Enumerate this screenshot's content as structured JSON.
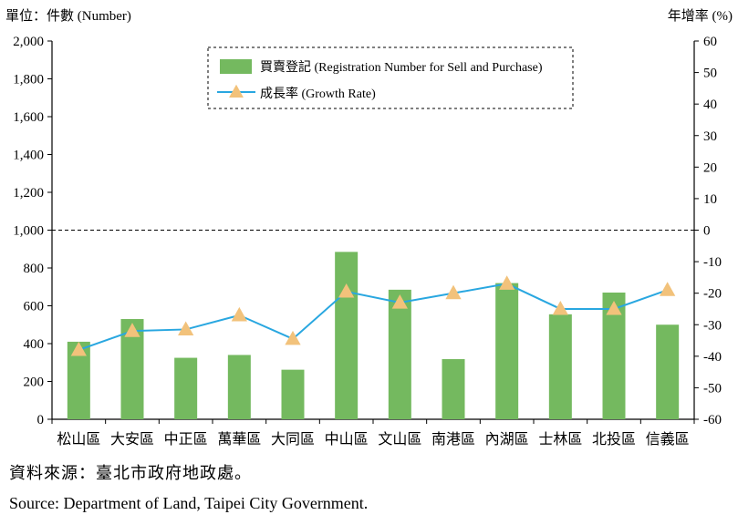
{
  "chart_data": {
    "type": "bar+line",
    "left_axis_unit": "單位：件數 (Number)",
    "right_axis_unit": "年增率 (%)",
    "categories": [
      "松山區",
      "大安區",
      "中正區",
      "萬華區",
      "大同區",
      "中山區",
      "文山區",
      "南港區",
      "內湖區",
      "士林區",
      "北投區",
      "信義區"
    ],
    "series": [
      {
        "name": "買賣登記 (Registration Number for Sell and Purchase)",
        "kind": "bar",
        "axis": "left",
        "color": "#74b95f",
        "values": [
          410,
          530,
          325,
          340,
          262,
          885,
          685,
          318,
          720,
          555,
          670,
          500
        ]
      },
      {
        "name": "成長率 (Growth Rate)",
        "kind": "line",
        "axis": "right",
        "color": "#29a7e0",
        "marker_color": "#f2c27b",
        "values": [
          -38.0,
          -32.0,
          -31.5,
          -27.0,
          -34.5,
          -19.5,
          -23.0,
          -20.0,
          -17.0,
          -25.0,
          -25.0,
          -19.0
        ]
      }
    ],
    "left_ylim": [
      0,
      2000
    ],
    "left_ticks": [
      "0",
      "200",
      "400",
      "600",
      "800",
      "1,000",
      "1,200",
      "1,400",
      "1,600",
      "1,800",
      "2,000"
    ],
    "right_ylim": [
      -60,
      60
    ],
    "right_ticks": [
      "-60",
      "-50",
      "-40",
      "-30",
      "-20",
      "-10",
      "0",
      "10",
      "20",
      "30",
      "40",
      "50",
      "60"
    ],
    "reference_line": {
      "axis": "right",
      "value": 0,
      "style": "dashed"
    },
    "legend_position": "top-center"
  },
  "source": {
    "zh": "資料來源：臺北市政府地政處。",
    "en": "Source: Department of Land, Taipei City Government."
  }
}
